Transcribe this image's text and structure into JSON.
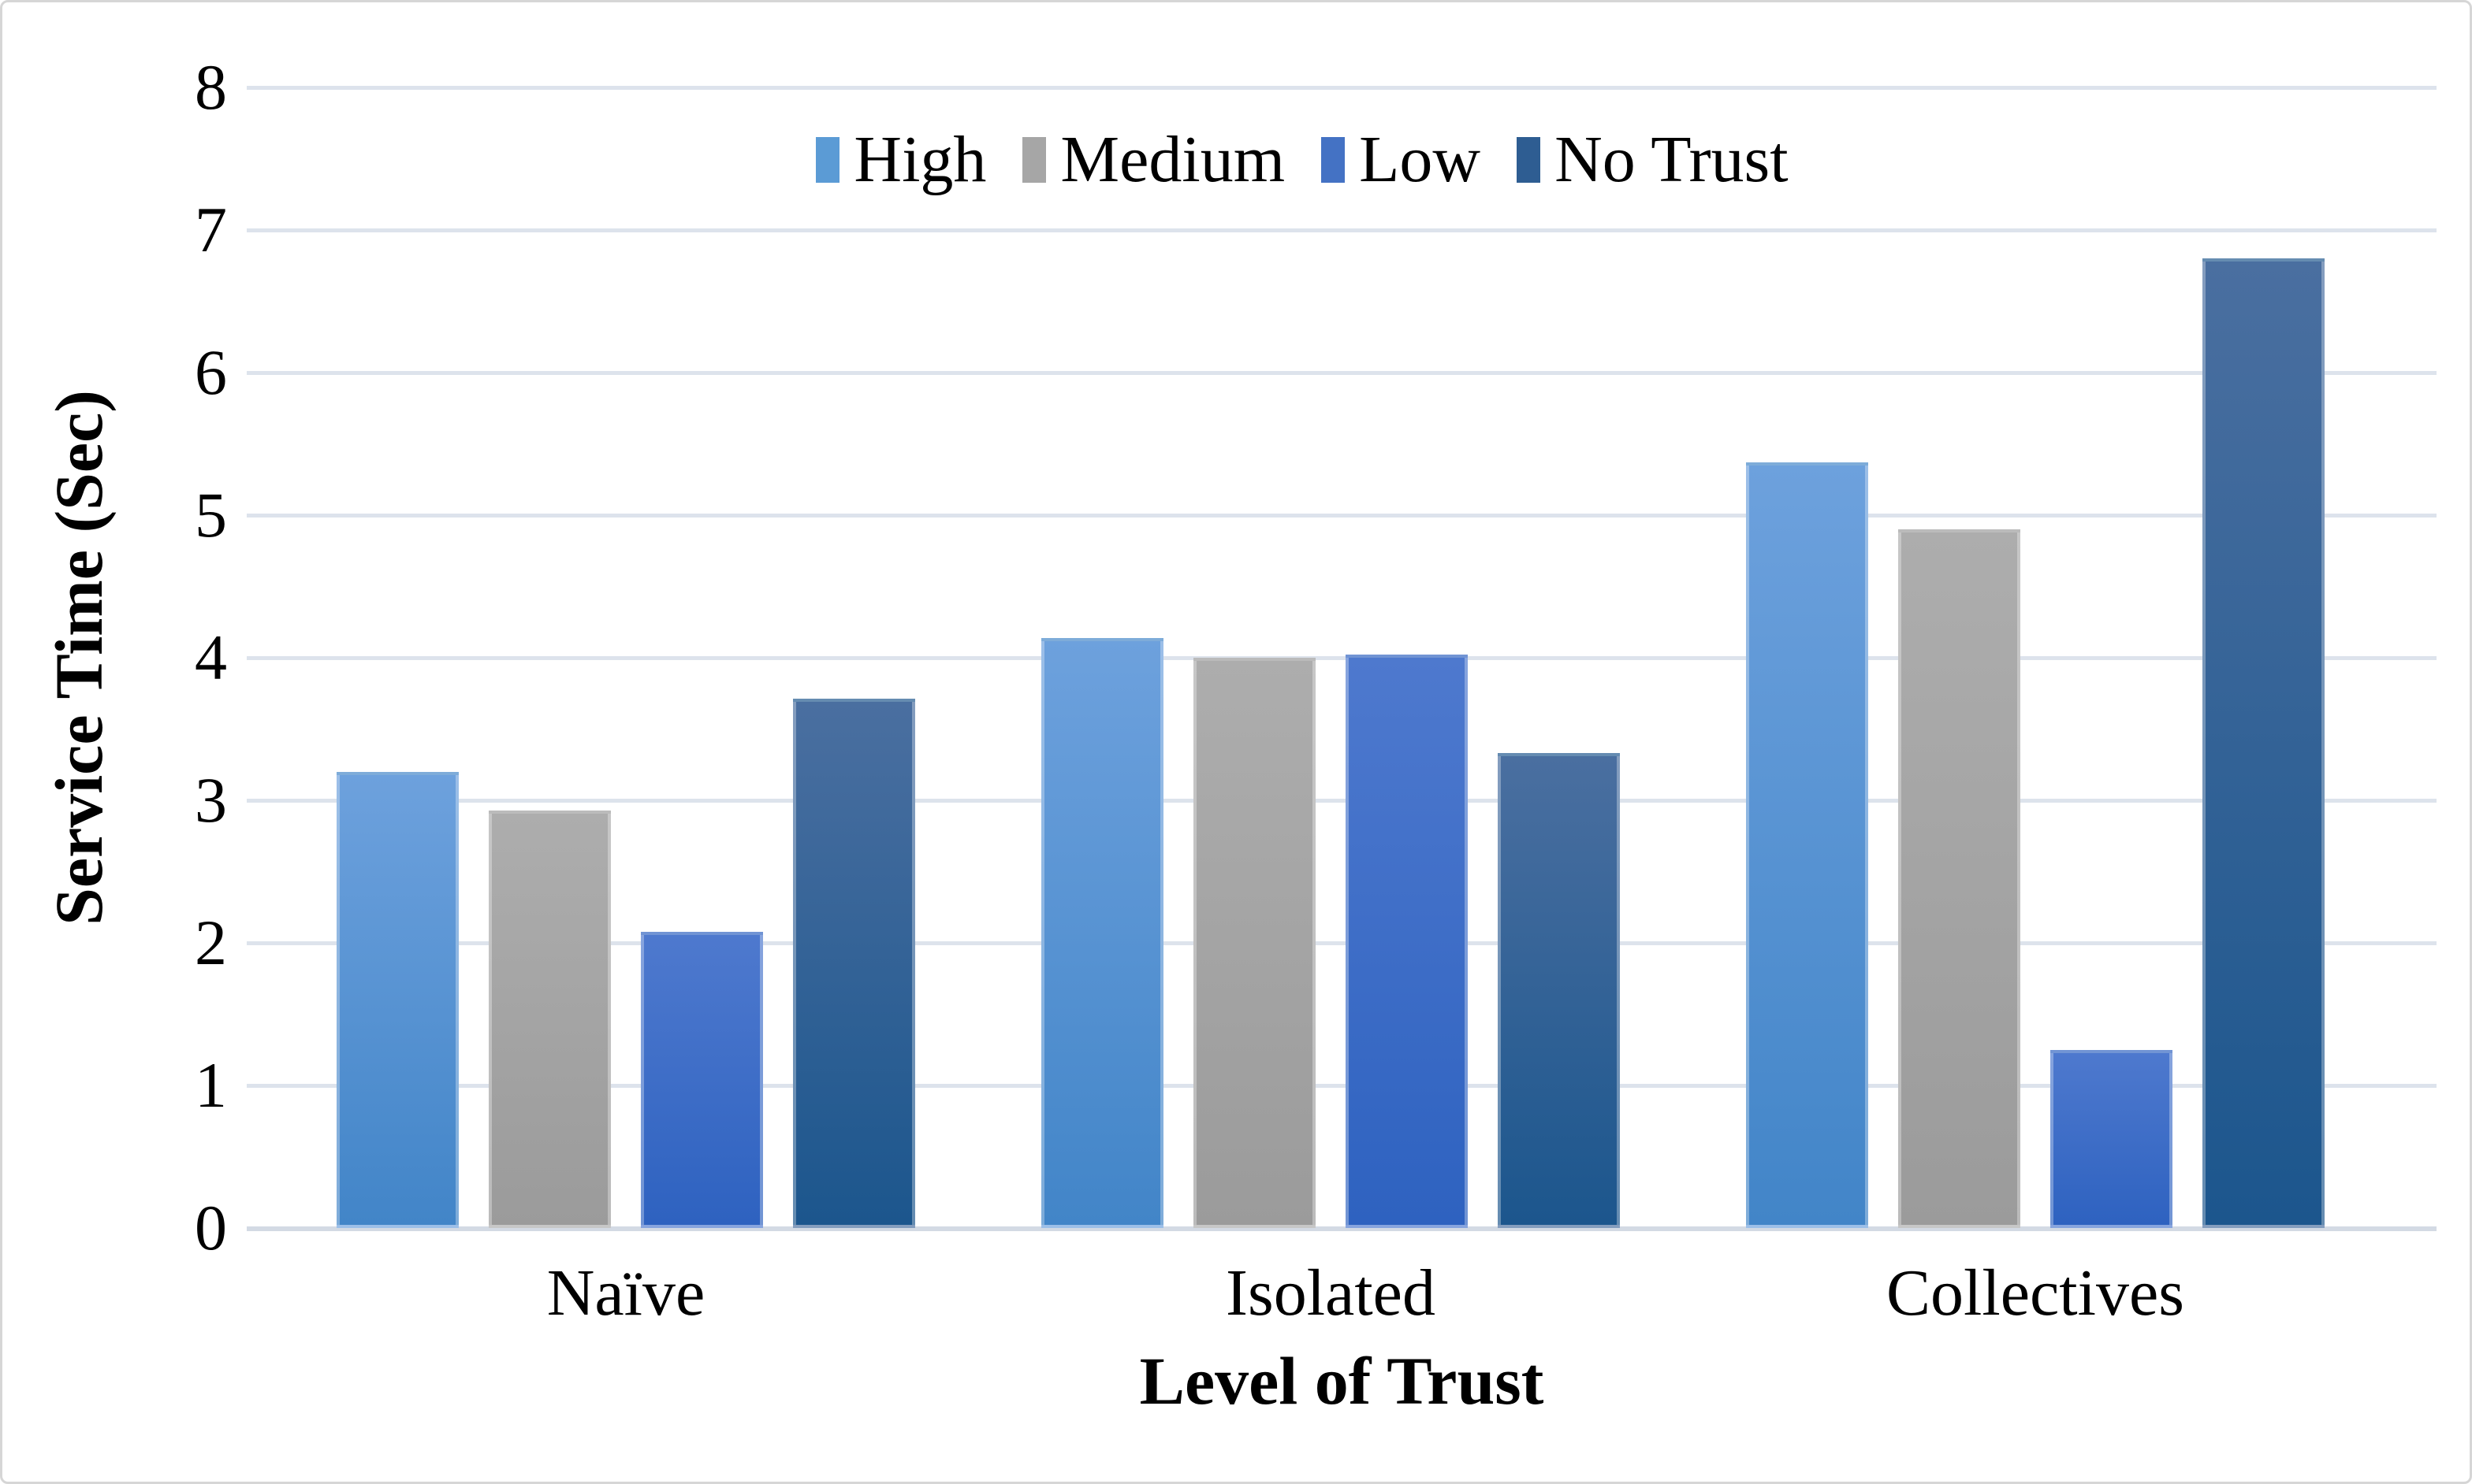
{
  "frame": {
    "background": "#ffffff",
    "border_color": "#d6d6d6",
    "text_color": "#000000"
  },
  "chart_data": {
    "type": "bar",
    "title": "",
    "xlabel": "Level of Trust",
    "ylabel": "Service Time (Sec)",
    "categories": [
      "Naïve",
      "Isolated",
      "Collectives"
    ],
    "series": [
      {
        "name": "High",
        "values": [
          3.2,
          4.14,
          5.37
        ],
        "legend_color": "#5b9bd5",
        "gradient_top": "#6da1dd",
        "gradient_bottom": "#4285c8"
      },
      {
        "name": "Medium",
        "values": [
          2.93,
          4.0,
          4.9
        ],
        "legend_color": "#a6a6a6",
        "gradient_top": "#adadad",
        "gradient_bottom": "#9b9b9b"
      },
      {
        "name": "Low",
        "values": [
          2.08,
          4.02,
          1.25
        ],
        "legend_color": "#4472c4",
        "gradient_top": "#4e79ce",
        "gradient_bottom": "#2e62c0"
      },
      {
        "name": "No Trust",
        "values": [
          3.71,
          3.33,
          6.8
        ],
        "legend_color": "#2e5d92",
        "gradient_top": "#4a6fa0",
        "gradient_bottom": "#1c568d"
      }
    ],
    "ylim": [
      0,
      8
    ],
    "yticks": [
      0,
      1,
      2,
      3,
      4,
      5,
      6,
      7,
      8
    ],
    "grid": true,
    "gridline_color": "#dde3ec",
    "legend_position": "top-center"
  }
}
